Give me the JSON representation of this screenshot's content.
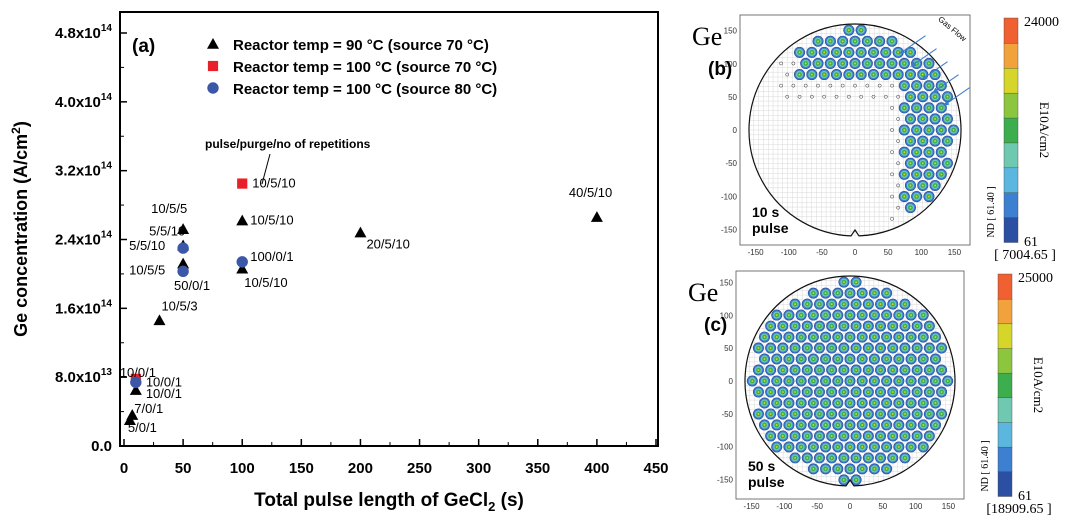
{
  "chart_data": [
    {
      "type": "scatter",
      "panel": "(a)",
      "xlabel": "Total pulse length of GeCl",
      "xlabel_sub": "2",
      "xlabel_unit": " (s)",
      "ylabel": "Ge concentration (A/cm",
      "ylabel_sup": "2",
      "ylabel_end": ")",
      "xlim": [
        0,
        450
      ],
      "ylim": [
        0,
        500000000000000.0
      ],
      "x_ticks": [
        0,
        50,
        100,
        150,
        200,
        250,
        300,
        350,
        400,
        450
      ],
      "x_tick_labels": [
        "0",
        "50",
        "100",
        "150",
        "200",
        "250",
        "300",
        "350",
        "400",
        "450"
      ],
      "y_ticks": [
        0,
        80000000000000.0,
        160000000000000.0,
        240000000000000.0,
        320000000000000.0,
        400000000000000.0,
        480000000000000.0
      ],
      "y_tick_labels": [
        {
          "base": "0.0",
          "exp": ""
        },
        {
          "base": "8.0x10",
          "exp": "13"
        },
        {
          "base": "1.6x10",
          "exp": "14"
        },
        {
          "base": "2.4x10",
          "exp": "14"
        },
        {
          "base": "3.2x10",
          "exp": "14"
        },
        {
          "base": "4.0x10",
          "exp": "14"
        },
        {
          "base": "4.8x10",
          "exp": "14"
        }
      ],
      "legend_position": "top-left",
      "series": [
        {
          "name": "Reactor temp = 90 °C (source 70 °C)",
          "marker": "triangle",
          "color": "#000000",
          "points": [
            {
              "x": 5,
              "y": 30000000000000.0,
              "label": "5/0/1"
            },
            {
              "x": 7,
              "y": 36000000000000.0,
              "label": "7/0/1"
            },
            {
              "x": 10,
              "y": 65000000000000.0,
              "label": "10/0/1"
            },
            {
              "x": 30,
              "y": 146000000000000.0,
              "label": "10/5/3"
            },
            {
              "x": 50,
              "y": 252000000000000.0,
              "label": "10/5/5"
            },
            {
              "x": 50,
              "y": 233000000000000.0,
              "label": "5/5/10"
            },
            {
              "x": 50,
              "y": 212000000000000.0,
              "label": ""
            },
            {
              "x": 100,
              "y": 262000000000000.0,
              "label": "10/5/10"
            },
            {
              "x": 100,
              "y": 206000000000000.0,
              "label": "10/5/10"
            },
            {
              "x": 200,
              "y": 248000000000000.0,
              "label": "20/5/10"
            },
            {
              "x": 400,
              "y": 266000000000000.0,
              "label": "40/5/10"
            }
          ]
        },
        {
          "name": "Reactor temp = 100 °C (source 70 °C)",
          "marker": "square",
          "color": "#e8202a",
          "points": [
            {
              "x": 10,
              "y": 78000000000000.0,
              "label": "10/0/1"
            },
            {
              "x": 100,
              "y": 305000000000000.0,
              "label": "10/5/10"
            }
          ]
        },
        {
          "name": "Reactor temp = 100 °C (source 80 °C)",
          "marker": "circle",
          "color": "#3b57a8",
          "points": [
            {
              "x": 10,
              "y": 74000000000000.0,
              "label": "10/0/1"
            },
            {
              "x": 50,
              "y": 230000000000000.0,
              "label": "5/5/10"
            },
            {
              "x": 50,
              "y": 203000000000000.0,
              "label": "10/5/5"
            },
            {
              "x": 100,
              "y": 214000000000000.0,
              "label": "100/0/1"
            }
          ]
        }
      ],
      "annotations": [
        {
          "text": "pulse/purge/no of repetitions",
          "label": "pulse-purge-annotation"
        },
        {
          "text": "50/0/1",
          "label": "unlabeled-50s-point"
        }
      ]
    },
    {
      "type": "heatmap",
      "panel": "(b)",
      "element": "Ge",
      "pulse_text": [
        "10 s",
        "pulse"
      ],
      "flow_label": "Gas Flow",
      "axis_ticks": [
        "-150",
        "-100",
        "-50",
        "0",
        "50",
        "100",
        "150"
      ],
      "colorbar_max": "24000",
      "colorbar_min": "61",
      "colorbar_unit": "E10A/cm2",
      "nd_text": "ND [ 61.40 ]",
      "mean_text": "[ 7004.65 ]",
      "colors": [
        "#2b4fa3",
        "#3d7fd0",
        "#5bb6e0",
        "#6fc9b0",
        "#3cae4e",
        "#8cc63f",
        "#d6d62a",
        "#f2a23a",
        "#f06030"
      ]
    },
    {
      "type": "heatmap",
      "panel": "(c)",
      "element": "Ge",
      "pulse_text": [
        "50 s",
        "pulse"
      ],
      "axis_ticks": [
        "-150",
        "-100",
        "-50",
        "0",
        "50",
        "100",
        "150"
      ],
      "colorbar_max": "25000",
      "colorbar_min": "61",
      "colorbar_unit": "E10A/cm2",
      "nd_text": "ND [ 61.40 ]",
      "mean_text": "[18909.65 ]",
      "colors": [
        "#2b4fa3",
        "#3d7fd0",
        "#5bb6e0",
        "#6fc9b0",
        "#3cae4e",
        "#8cc63f",
        "#d6d62a",
        "#f2a23a",
        "#f06030"
      ]
    }
  ]
}
